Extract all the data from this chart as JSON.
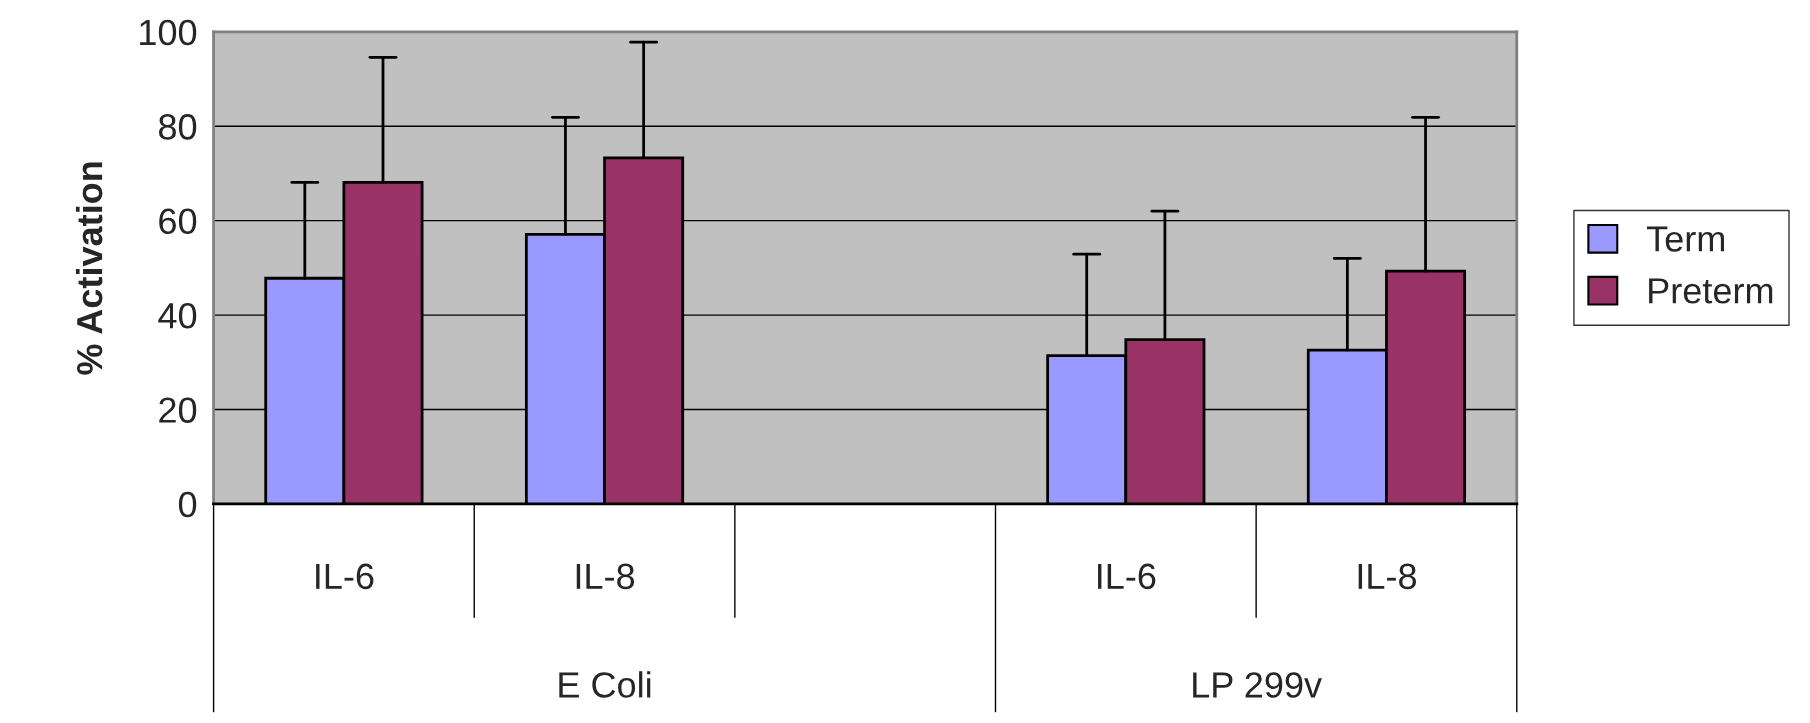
{
  "chart_data": {
    "type": "bar",
    "ylabel": "% Activation",
    "categories": [
      "IL-6",
      "IL-8",
      null,
      "IL-6",
      "IL-8"
    ],
    "series": [
      {
        "name": "Term",
        "color": "#9999ff",
        "values": [
          47.8,
          57.1,
          null,
          31.4,
          32.6
        ],
        "errors": [
          [
            47.8,
            68.1
          ],
          [
            57.1,
            81.9
          ],
          null,
          [
            31.4,
            52.9
          ],
          [
            32.6,
            52
          ]
        ]
      },
      {
        "name": "Preterm",
        "color": "#993366",
        "values": [
          68.1,
          73.3,
          null,
          34.8,
          49.3
        ],
        "errors": [
          [
            68.1,
            94.6
          ],
          [
            73.3,
            97.8
          ],
          null,
          [
            34.8,
            62
          ],
          [
            49.3,
            81.9
          ]
        ]
      }
    ],
    "annotations": [
      "E Coli",
      "LP 299v"
    ],
    "ylim": [
      0,
      100
    ],
    "yticks": [
      0,
      20,
      40,
      60,
      80,
      100
    ],
    "grid": "y",
    "legend": "right"
  }
}
